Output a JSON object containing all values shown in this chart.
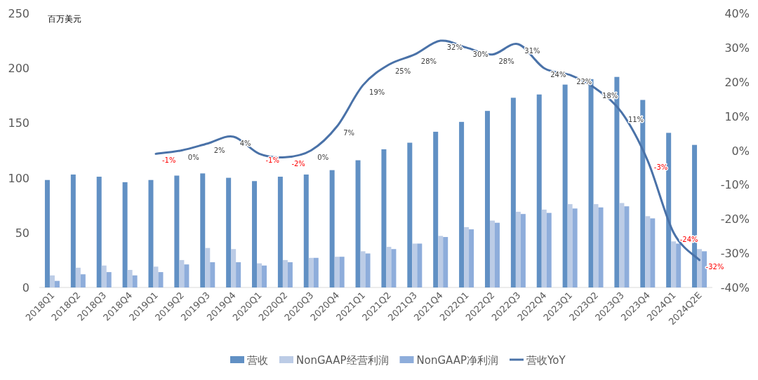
{
  "chart_data": {
    "type": "bar",
    "ylabel": "百万美元",
    "categories": [
      "2018Q1",
      "2018Q2",
      "2018Q3",
      "2018Q4",
      "2019Q1",
      "2019Q2",
      "2019Q3",
      "2019Q4",
      "2020Q1",
      "2020Q2",
      "2020Q3",
      "2020Q4",
      "2021Q1",
      "2021Q2",
      "2021Q3",
      "2021Q4",
      "2022Q1",
      "2022Q2",
      "2022Q3",
      "2022Q4",
      "2023Q1",
      "2023Q2",
      "2023Q3",
      "2023Q4",
      "2024Q1",
      "2024Q2E"
    ],
    "series": [
      {
        "name": "营收",
        "color": "#6190c4",
        "values": [
          98,
          103,
          101,
          96,
          98,
          102,
          104,
          100,
          97,
          101,
          103,
          107,
          116,
          126,
          132,
          142,
          151,
          161,
          173,
          176,
          185,
          190,
          192,
          171,
          141,
          130
        ]
      },
      {
        "name": "NonGAAP经营利润",
        "color": "#bccce6",
        "values": [
          11,
          18,
          20,
          16,
          19,
          25,
          36,
          35,
          22,
          25,
          27,
          28,
          33,
          37,
          40,
          47,
          55,
          61,
          69,
          71,
          76,
          76,
          77,
          65,
          42,
          35
        ]
      },
      {
        "name": "NonGAAP净利润",
        "color": "#8eaddb",
        "values": [
          6,
          12,
          14,
          11,
          14,
          21,
          23,
          23,
          20,
          23,
          27,
          28,
          31,
          35,
          40,
          46,
          53,
          59,
          67,
          68,
          72,
          73,
          74,
          63,
          40,
          33
        ]
      },
      {
        "name": "营收YoY",
        "type": "line",
        "axis": "y2",
        "color": "#4a72a8",
        "value_labels": [
          null,
          null,
          null,
          null,
          "-1%",
          "0%",
          "2%",
          "4%",
          "-1%",
          "-2%",
          "0%",
          "7%",
          "19%",
          "25%",
          "28%",
          "32%",
          "30%",
          "28%",
          "31%",
          "24%",
          "22%",
          "18%",
          "11%",
          "-3%",
          "-24%",
          "-32%"
        ],
        "values": [
          null,
          null,
          null,
          null,
          -1,
          0,
          2,
          4,
          -1,
          -2,
          0,
          7,
          19,
          25,
          28,
          32,
          30,
          28,
          31,
          24,
          22,
          18,
          11,
          -3,
          -24,
          -32
        ]
      }
    ],
    "ylim": [
      0,
      250
    ],
    "yticks": [
      0,
      50,
      100,
      150,
      200,
      250
    ],
    "y2lim": [
      -40,
      40
    ],
    "y2ticks": [
      {
        "value": -40,
        "label": "-40%"
      },
      {
        "value": -30,
        "label": "-30%"
      },
      {
        "value": -20,
        "label": "-20%"
      },
      {
        "value": -10,
        "label": "-10%"
      },
      {
        "value": 0,
        "label": "0%"
      },
      {
        "value": 10,
        "label": "10%"
      },
      {
        "value": 20,
        "label": "20%"
      },
      {
        "value": 30,
        "label": "30%"
      },
      {
        "value": 40,
        "label": "40%"
      }
    ],
    "grid": false,
    "legend": "bottom"
  }
}
